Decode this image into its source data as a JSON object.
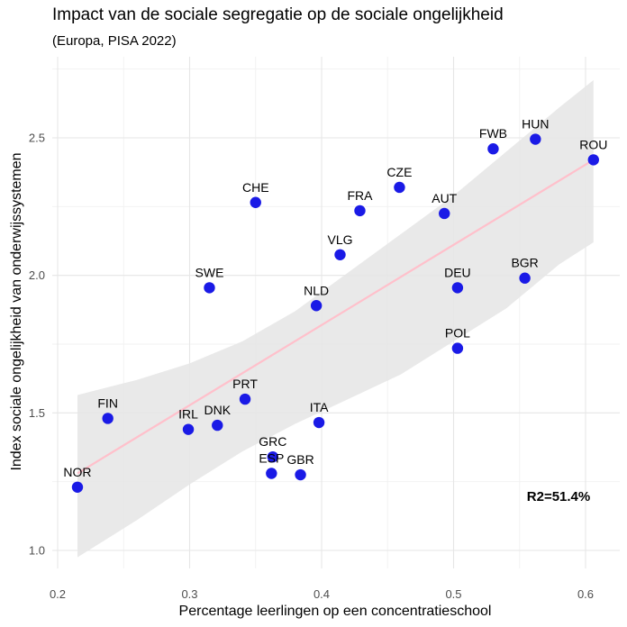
{
  "chart_data": {
    "type": "scatter",
    "title": "Impact van de sociale segregatie op de sociale ongelijkheid",
    "subtitle": "(Europa, PISA 2022)",
    "xlabel": "Percentage leerlingen op een concentratieschool",
    "ylabel": "Index sociale ongelijkheid van onderwijssystemen",
    "xlim": [
      0.2,
      0.6
    ],
    "ylim": [
      1.0,
      2.5
    ],
    "x_ticks": [
      "0.2",
      "0.3",
      "0.4",
      "0.5",
      "0.6"
    ],
    "y_ticks": [
      "1.0",
      "1.5",
      "2.0",
      "2.5"
    ],
    "grid": true,
    "annotation": "R2=51.4%",
    "point_color": "#1a1ae6",
    "trend_color": "#ffc0cb",
    "band_color": "#e5e5e5",
    "trend": {
      "x": [
        0.215,
        0.606
      ],
      "y": [
        1.28,
        2.42
      ]
    },
    "confidence_band": {
      "x": [
        0.215,
        0.26,
        0.3,
        0.34,
        0.38,
        0.42,
        0.46,
        0.5,
        0.54,
        0.58,
        0.606
      ],
      "upper": [
        1.565,
        1.62,
        1.68,
        1.76,
        1.87,
        2.01,
        2.15,
        2.29,
        2.45,
        2.61,
        2.71
      ],
      "lower": [
        0.975,
        1.11,
        1.24,
        1.36,
        1.46,
        1.55,
        1.64,
        1.76,
        1.88,
        2.04,
        2.12
      ]
    },
    "points": [
      {
        "label": "NOR",
        "x": 0.215,
        "y": 1.23
      },
      {
        "label": "FIN",
        "x": 0.238,
        "y": 1.48
      },
      {
        "label": "IRL",
        "x": 0.299,
        "y": 1.44
      },
      {
        "label": "DNK",
        "x": 0.321,
        "y": 1.455
      },
      {
        "label": "PRT",
        "x": 0.342,
        "y": 1.55
      },
      {
        "label": "SWE",
        "x": 0.315,
        "y": 1.955
      },
      {
        "label": "CHE",
        "x": 0.35,
        "y": 2.265
      },
      {
        "label": "GRC",
        "x": 0.363,
        "y": 1.34
      },
      {
        "label": "ESP",
        "x": 0.362,
        "y": 1.28
      },
      {
        "label": "GBR",
        "x": 0.384,
        "y": 1.275
      },
      {
        "label": "ITA",
        "x": 0.398,
        "y": 1.465
      },
      {
        "label": "NLD",
        "x": 0.396,
        "y": 1.89
      },
      {
        "label": "VLG",
        "x": 0.414,
        "y": 2.075
      },
      {
        "label": "FRA",
        "x": 0.429,
        "y": 2.235
      },
      {
        "label": "CZE",
        "x": 0.459,
        "y": 2.32
      },
      {
        "label": "AUT",
        "x": 0.493,
        "y": 2.225
      },
      {
        "label": "DEU",
        "x": 0.503,
        "y": 1.955
      },
      {
        "label": "POL",
        "x": 0.503,
        "y": 1.735
      },
      {
        "label": "BGR",
        "x": 0.554,
        "y": 1.99
      },
      {
        "label": "FWB",
        "x": 0.53,
        "y": 2.46
      },
      {
        "label": "HUN",
        "x": 0.562,
        "y": 2.495
      },
      {
        "label": "ROU",
        "x": 0.606,
        "y": 2.42
      }
    ]
  }
}
